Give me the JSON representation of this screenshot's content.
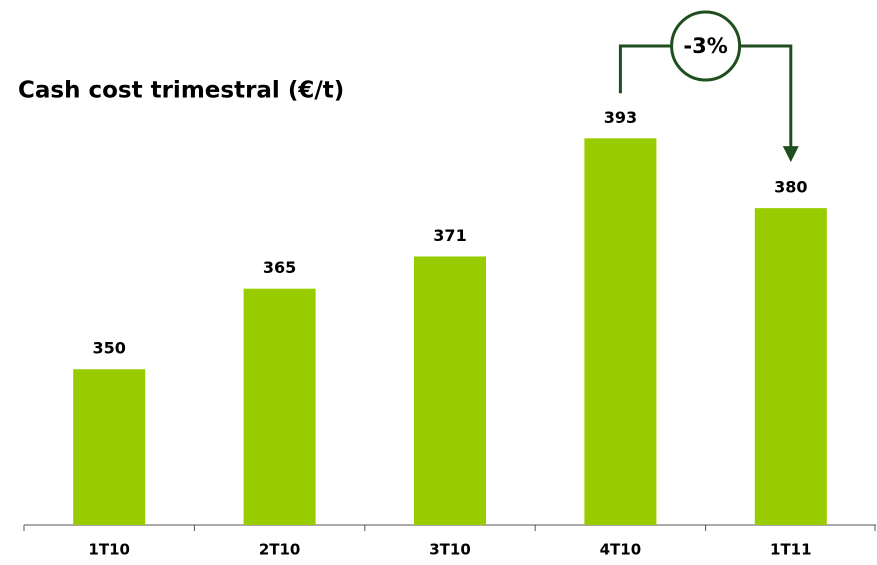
{
  "chart_data": {
    "type": "bar",
    "title": "Cash cost trimestral (€/t)",
    "categories": [
      "1T10",
      "2T10",
      "3T10",
      "4T10",
      "1T11"
    ],
    "values": [
      350,
      365,
      371,
      393,
      380
    ],
    "color": "#99cc00",
    "ylim": [
      321,
      410
    ],
    "annotation": "-3%",
    "annotation_color": "#1f4f1f"
  }
}
